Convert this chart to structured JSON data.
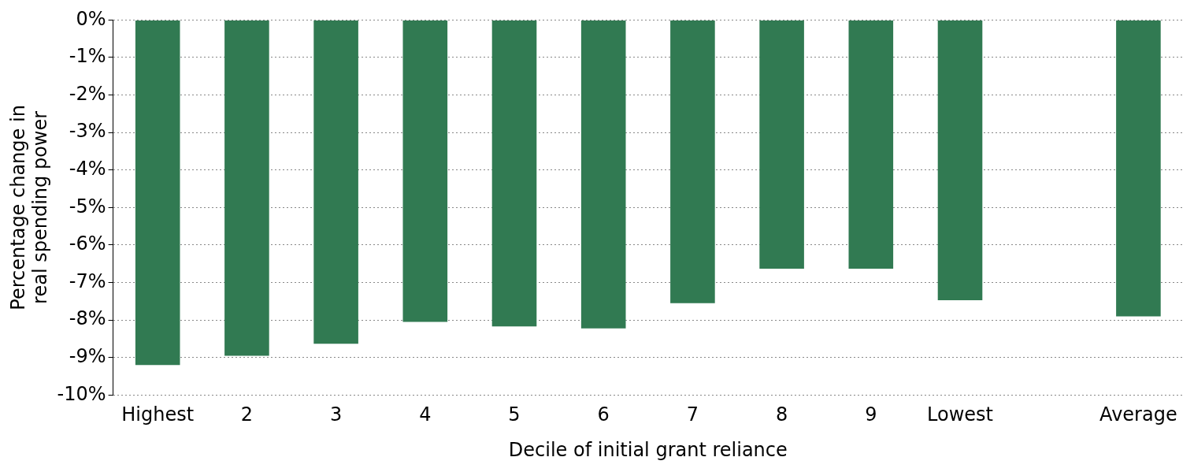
{
  "chart_data": {
    "type": "bar",
    "xlabel": "Decile of initial grant reliance",
    "ylabel": "Percentage change in real spending power",
    "categories": [
      "Highest",
      "2",
      "3",
      "4",
      "5",
      "6",
      "7",
      "8",
      "9",
      "Lowest",
      null,
      "Average"
    ],
    "values": [
      -9.2,
      -8.95,
      -8.63,
      -8.05,
      -8.17,
      -8.22,
      -7.55,
      -6.63,
      -6.63,
      -7.47,
      null,
      -7.9
    ],
    "color": "#317a52",
    "ylim": [
      -10,
      0
    ],
    "yticks": [
      {
        "value": 0,
        "label": "0%"
      },
      {
        "value": -1,
        "label": "-1%"
      },
      {
        "value": -2,
        "label": "-2%"
      },
      {
        "value": -3,
        "label": "-3%"
      },
      {
        "value": -4,
        "label": "-4%"
      },
      {
        "value": -5,
        "label": "-5%"
      },
      {
        "value": -6,
        "label": "-6%"
      },
      {
        "value": -7,
        "label": "-7%"
      },
      {
        "value": -8,
        "label": "-8%"
      },
      {
        "value": -9,
        "label": "-9%"
      },
      {
        "value": -10,
        "label": "-10%"
      }
    ],
    "grid": "y",
    "legend": false
  }
}
